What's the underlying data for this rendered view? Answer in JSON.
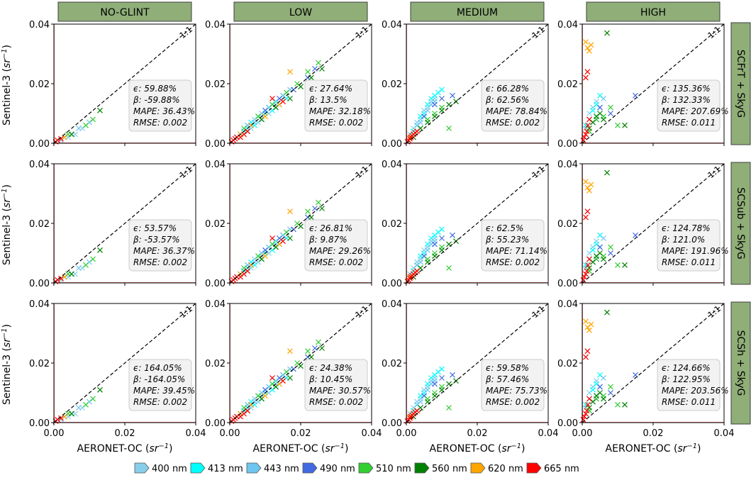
{
  "figure": {
    "x_label": "AERONET-OC",
    "y_label": "Sentinel-3",
    "unit_base": "sr",
    "unit_exp": "−1",
    "one_to_one_label": "1:1"
  },
  "columns": [
    "NO-GLINT",
    "LOW",
    "MEDIUM",
    "HIGH"
  ],
  "rows": [
    "SCFrT + SkyG",
    "SCSub + SkyG",
    "SCSh + SkyG"
  ],
  "legend": [
    {
      "label": "400 nm",
      "color": "#87ceeb"
    },
    {
      "label": "413 nm",
      "color": "#00ffff"
    },
    {
      "label": "443 nm",
      "color": "#6ec5f0"
    },
    {
      "label": "490 nm",
      "color": "#4169e1"
    },
    {
      "label": "510 nm",
      "color": "#32cd32"
    },
    {
      "label": "560 nm",
      "color": "#008000"
    },
    {
      "label": "620 nm",
      "color": "#ffa500"
    },
    {
      "label": "665 nm",
      "color": "#ff0000"
    }
  ],
  "chart_data": {
    "type": "scatter",
    "xlim": [
      0,
      0.04
    ],
    "ylim": [
      0,
      0.04
    ],
    "xticks": [
      "0.00",
      "0.02",
      "0.04"
    ],
    "yticks": [
      "0.00",
      "0.02",
      "0.04"
    ],
    "panels": [
      {
        "row": 0,
        "col": 0,
        "stats": {
          "eps": "59.88%",
          "beta": "-59.88%",
          "mape": "36.43%",
          "rmse": "0.002"
        }
      },
      {
        "row": 0,
        "col": 1,
        "stats": {
          "eps": "27.64%",
          "beta": "13.5%",
          "mape": "32.18%",
          "rmse": "0.002"
        }
      },
      {
        "row": 0,
        "col": 2,
        "stats": {
          "eps": "66.28%",
          "beta": "62.56%",
          "mape": "78.84%",
          "rmse": "0.002"
        }
      },
      {
        "row": 0,
        "col": 3,
        "stats": {
          "eps": "135.36%",
          "beta": "132.33%",
          "mape": "207.69%",
          "rmse": "0.011"
        }
      },
      {
        "row": 1,
        "col": 0,
        "stats": {
          "eps": "53.57%",
          "beta": "-53.57%",
          "mape": "36.37%",
          "rmse": "0.002"
        }
      },
      {
        "row": 1,
        "col": 1,
        "stats": {
          "eps": "26.81%",
          "beta": "9.87%",
          "mape": "29.26%",
          "rmse": "0.002"
        }
      },
      {
        "row": 1,
        "col": 2,
        "stats": {
          "eps": "62.5%",
          "beta": "55.23%",
          "mape": "71.14%",
          "rmse": "0.002"
        }
      },
      {
        "row": 1,
        "col": 3,
        "stats": {
          "eps": "124.78%",
          "beta": "121.0%",
          "mape": "191.96%",
          "rmse": "0.011"
        }
      },
      {
        "row": 2,
        "col": 0,
        "stats": {
          "eps": "164.05%",
          "beta": "-164.05%",
          "mape": "39.45%",
          "rmse": "0.002"
        }
      },
      {
        "row": 2,
        "col": 1,
        "stats": {
          "eps": "24.38%",
          "beta": "10.45%",
          "mape": "30.57%",
          "rmse": "0.002"
        }
      },
      {
        "row": 2,
        "col": 2,
        "stats": {
          "eps": "59.58%",
          "beta": "57.46%",
          "mape": "75.73%",
          "rmse": "0.002"
        }
      },
      {
        "row": 2,
        "col": 3,
        "stats": {
          "eps": "124.66%",
          "beta": "122.95%",
          "mape": "203.56%",
          "rmse": "0.011"
        }
      }
    ],
    "series": [
      {
        "name": "400 nm",
        "col": 0,
        "row": "all",
        "x": [
          0.002,
          0.004,
          0.006,
          0.008
        ],
        "y": [
          0.001,
          0.002,
          0.003,
          0.005
        ]
      },
      {
        "name": "443 nm",
        "col": 0,
        "row": "all",
        "x": [
          0.003,
          0.005,
          0.007,
          0.01
        ],
        "y": [
          0.002,
          0.003,
          0.005,
          0.007
        ]
      },
      {
        "name": "510 nm",
        "col": 0,
        "row": "all",
        "x": [
          0.004,
          0.009,
          0.011
        ],
        "y": [
          0.003,
          0.006,
          0.008
        ]
      },
      {
        "name": "560 nm",
        "col": 0,
        "row": "all",
        "x": [
          0.005,
          0.013
        ],
        "y": [
          0.003,
          0.011
        ]
      },
      {
        "name": "620 nm",
        "col": 0,
        "row": "all",
        "x": [
          0.003
        ],
        "y": [
          0.002
        ]
      },
      {
        "name": "665 nm",
        "col": 0,
        "row": "all",
        "x": [
          0.0005,
          0.001,
          0.002
        ],
        "y": [
          0.0005,
          0.001,
          0.0015
        ]
      },
      {
        "name": "400 nm",
        "col": 1,
        "row": "all",
        "x": [
          0.002,
          0.004,
          0.005,
          0.006,
          0.007,
          0.008,
          0.009,
          0.01,
          0.011,
          0.012,
          0.013,
          0.014
        ],
        "y": [
          0.002,
          0.004,
          0.006,
          0.005,
          0.008,
          0.007,
          0.009,
          0.011,
          0.01,
          0.013,
          0.012,
          0.015
        ]
      },
      {
        "name": "413 nm",
        "col": 1,
        "row": "all",
        "x": [
          0.002,
          0.003,
          0.004,
          0.005,
          0.006,
          0.007,
          0.008,
          0.009,
          0.01,
          0.011,
          0.012,
          0.013,
          0.014,
          0.015,
          0.016
        ],
        "y": [
          0.002,
          0.003,
          0.004,
          0.005,
          0.007,
          0.006,
          0.009,
          0.008,
          0.01,
          0.012,
          0.011,
          0.014,
          0.013,
          0.016,
          0.015
        ]
      },
      {
        "name": "443 nm",
        "col": 1,
        "row": "all",
        "x": [
          0.003,
          0.005,
          0.007,
          0.009,
          0.011,
          0.013,
          0.015,
          0.017
        ],
        "y": [
          0.003,
          0.006,
          0.007,
          0.01,
          0.012,
          0.013,
          0.016,
          0.018
        ]
      },
      {
        "name": "490 nm",
        "col": 1,
        "row": "all",
        "x": [
          0.006,
          0.01,
          0.014,
          0.018,
          0.022,
          0.024
        ],
        "y": [
          0.006,
          0.011,
          0.015,
          0.018,
          0.022,
          0.025
        ]
      },
      {
        "name": "510 nm",
        "col": 1,
        "row": "all",
        "x": [
          0.004,
          0.008,
          0.012,
          0.016,
          0.019,
          0.022,
          0.025
        ],
        "y": [
          0.005,
          0.009,
          0.013,
          0.017,
          0.02,
          0.024,
          0.027
        ]
      },
      {
        "name": "560 nm",
        "col": 1,
        "row": "all",
        "x": [
          0.005,
          0.009,
          0.013,
          0.017,
          0.02,
          0.023,
          0.026
        ],
        "y": [
          0.004,
          0.008,
          0.012,
          0.015,
          0.019,
          0.022,
          0.025
        ]
      },
      {
        "name": "620 nm",
        "col": 1,
        "row": "all",
        "x": [
          0.003,
          0.006,
          0.01,
          0.014,
          0.017
        ],
        "y": [
          0.003,
          0.006,
          0.009,
          0.013,
          0.024
        ]
      },
      {
        "name": "665 nm",
        "col": 1,
        "row": "all",
        "x": [
          0.0005,
          0.001,
          0.0015,
          0.002,
          0.003,
          0.004,
          0.005,
          0.012,
          0.015
        ],
        "y": [
          0.0005,
          0.001,
          0.0015,
          0.002,
          0.002,
          0.003,
          0.004,
          0.015,
          0.014
        ]
      },
      {
        "name": "400 nm",
        "col": 2,
        "row": "all",
        "x": [
          0.001,
          0.002,
          0.003,
          0.004,
          0.005,
          0.006,
          0.007,
          0.008
        ],
        "y": [
          0.003,
          0.005,
          0.007,
          0.008,
          0.011,
          0.012,
          0.014,
          0.015
        ]
      },
      {
        "name": "413 nm",
        "col": 2,
        "row": "all",
        "x": [
          0.001,
          0.002,
          0.003,
          0.004,
          0.005,
          0.006,
          0.007,
          0.008,
          0.009,
          0.01
        ],
        "y": [
          0.002,
          0.004,
          0.006,
          0.009,
          0.01,
          0.013,
          0.015,
          0.016,
          0.017,
          0.018
        ]
      },
      {
        "name": "443 nm",
        "col": 2,
        "row": "all",
        "x": [
          0.002,
          0.003,
          0.004,
          0.005,
          0.006,
          0.007,
          0.008
        ],
        "y": [
          0.003,
          0.006,
          0.007,
          0.009,
          0.011,
          0.013,
          0.014
        ]
      },
      {
        "name": "490 nm",
        "col": 2,
        "row": "all",
        "x": [
          0.005,
          0.008,
          0.01,
          0.013
        ],
        "y": [
          0.009,
          0.013,
          0.015,
          0.016
        ]
      },
      {
        "name": "510 nm",
        "col": 2,
        "row": "all",
        "x": [
          0.002,
          0.004,
          0.006,
          0.008,
          0.01,
          0.012
        ],
        "y": [
          0.003,
          0.005,
          0.008,
          0.01,
          0.012,
          0.005
        ]
      },
      {
        "name": "560 nm",
        "col": 2,
        "row": "all",
        "x": [
          0.002,
          0.004,
          0.006,
          0.008,
          0.01,
          0.012,
          0.014
        ],
        "y": [
          0.002,
          0.005,
          0.007,
          0.009,
          0.011,
          0.013,
          0.014
        ]
      },
      {
        "name": "620 nm",
        "col": 2,
        "row": "all",
        "x": [
          0.001,
          0.002,
          0.003
        ],
        "y": [
          0.002,
          0.003,
          0.004
        ]
      },
      {
        "name": "665 nm",
        "col": 2,
        "row": "all",
        "x": [
          0.0003,
          0.0006,
          0.001,
          0.0013,
          0.0016,
          0.002,
          0.0025,
          0.003
        ],
        "y": [
          0.0005,
          0.001,
          0.0015,
          0.002,
          0.0025,
          0.003,
          0.0035,
          0.004
        ]
      },
      {
        "name": "400 nm",
        "col": 3,
        "row": "all",
        "x": [
          0.001,
          0.002,
          0.003,
          0.004
        ],
        "y": [
          0.005,
          0.01,
          0.012,
          0.014
        ]
      },
      {
        "name": "413 nm",
        "col": 3,
        "row": "all",
        "x": [
          0.001,
          0.002,
          0.003,
          0.004,
          0.005
        ],
        "y": [
          0.006,
          0.008,
          0.011,
          0.013,
          0.016
        ]
      },
      {
        "name": "443 nm",
        "col": 3,
        "row": "all",
        "x": [
          0.002,
          0.003,
          0.004,
          0.005,
          0.006
        ],
        "y": [
          0.004,
          0.007,
          0.009,
          0.012,
          0.015
        ]
      },
      {
        "name": "490 nm",
        "col": 3,
        "row": "all",
        "x": [
          0.004,
          0.005,
          0.008,
          0.015
        ],
        "y": [
          0.008,
          0.012,
          0.01,
          0.016
        ]
      },
      {
        "name": "510 nm",
        "col": 3,
        "row": "all",
        "x": [
          0.002,
          0.004,
          0.006,
          0.008,
          0.01
        ],
        "y": [
          0.004,
          0.008,
          0.009,
          0.012,
          0.006
        ]
      },
      {
        "name": "560 nm",
        "col": 3,
        "row": "all",
        "x": [
          0.002,
          0.003,
          0.004,
          0.005,
          0.006,
          0.007,
          0.012
        ],
        "y": [
          0.005,
          0.007,
          0.009,
          0.01,
          0.008,
          0.037,
          0.006
        ]
      },
      {
        "name": "620 nm",
        "col": 3,
        "row": "all",
        "x": [
          0.001,
          0.0015,
          0.002,
          0.0025
        ],
        "y": [
          0.034,
          0.032,
          0.031,
          0.033
        ]
      },
      {
        "name": "665 nm",
        "col": 3,
        "row": "all",
        "x": [
          0.0003,
          0.0006,
          0.001,
          0.0013,
          0.0016,
          0.002,
          0.001,
          0.0015
        ],
        "y": [
          0.001,
          0.002,
          0.003,
          0.004,
          0.006,
          0.008,
          0.022,
          0.024
        ]
      }
    ]
  }
}
